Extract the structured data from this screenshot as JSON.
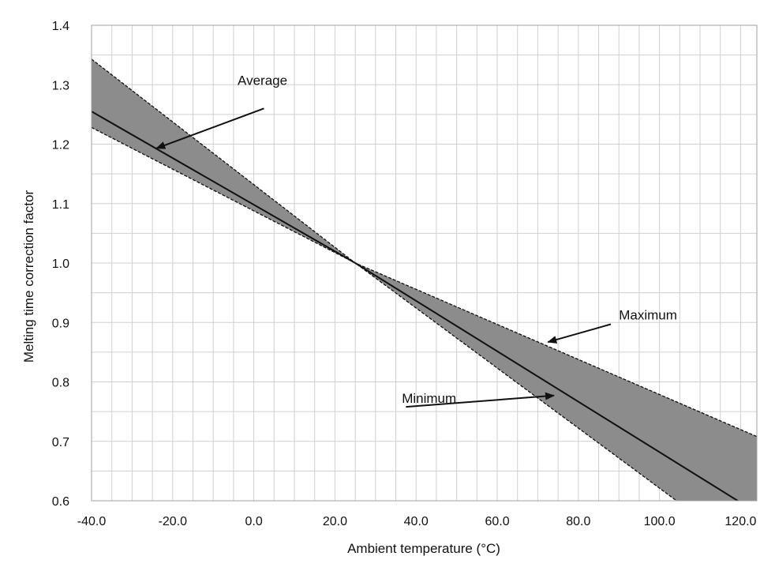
{
  "chart_data": {
    "type": "line",
    "title": "",
    "xlabel": "Ambient temperature (°C)",
    "ylabel": "Melting time correction factor",
    "xlim": [
      -40,
      124
    ],
    "ylim": [
      0.6,
      1.4
    ],
    "x_ticks": [
      -40,
      -20,
      0,
      20,
      40,
      60,
      80,
      100,
      120
    ],
    "x_tick_labels": [
      "-40.0",
      "-20.0",
      "0.0",
      "20.0",
      "40.0",
      "60.0",
      "80.0",
      "100.0",
      "120.0"
    ],
    "y_ticks": [
      0.6,
      0.7,
      0.8,
      0.9,
      1.0,
      1.1,
      1.2,
      1.3,
      1.4
    ],
    "y_tick_labels": [
      "0.6",
      "0.7",
      "0.8",
      "0.9",
      "1.0",
      "1.1",
      "1.2",
      "1.3",
      "1.4"
    ],
    "grid": true,
    "grid_minor_x_step": 5,
    "grid_minor_y_step": 0.05,
    "legend": "none",
    "band_color": "#8c8c8c",
    "series": [
      {
        "name": "Maximum",
        "style": "dashed",
        "x": [
          -40,
          25,
          124
        ],
        "y": [
          1.343,
          1.0,
          0.708
        ]
      },
      {
        "name": "Average",
        "style": "solid",
        "x": [
          -40,
          25,
          124
        ],
        "y": [
          1.255,
          1.0,
          0.58
        ]
      },
      {
        "name": "Minimum",
        "style": "dashed",
        "x": [
          -40,
          25,
          124
        ],
        "y": [
          1.228,
          1.0,
          0.5
        ]
      }
    ],
    "annotations": [
      {
        "text": "Average",
        "label_at": [
          -4,
          1.3
        ],
        "arrow_from": [
          2.5,
          1.26
        ],
        "arrow_to": [
          -24,
          1.193
        ]
      },
      {
        "text": "Maximum",
        "label_at": [
          90,
          0.905
        ],
        "arrow_from": [
          88,
          0.897
        ],
        "arrow_to": [
          72.5,
          0.867
        ]
      },
      {
        "text": "Minimum",
        "label_at": [
          36.5,
          0.765
        ],
        "arrow_from": [
          37.5,
          0.758
        ],
        "arrow_to": [
          74,
          0.777
        ]
      }
    ]
  }
}
